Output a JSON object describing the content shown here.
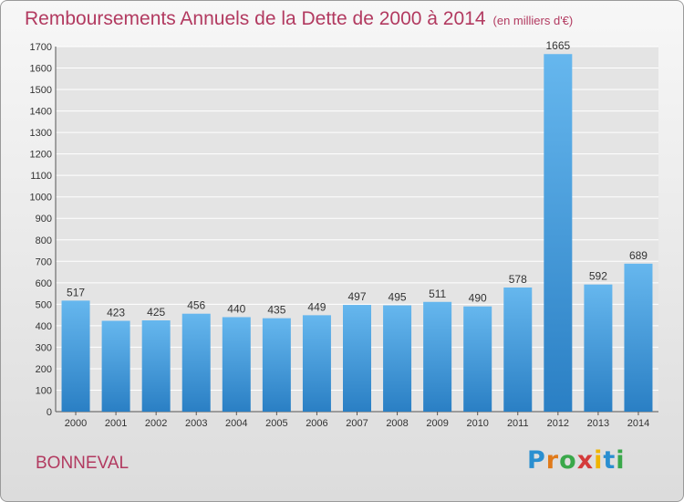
{
  "title": "Remboursements Annuels de la Dette de 2000 à 2014",
  "unit": "(en milliers d'€)",
  "commune": "BONNEVAL",
  "logo_text": "Proxiti",
  "colors": {
    "title": "#b23a60",
    "bar_top": "#66b7ee",
    "bar_bottom": "#2a7fc4",
    "grid": "#ffffff"
  },
  "chart_data": {
    "type": "bar",
    "title": "Remboursements Annuels de la Dette de 2000 à 2014",
    "subtitle": "(en milliers d'€)",
    "xlabel": "",
    "ylabel": "",
    "categories": [
      "2000",
      "2001",
      "2002",
      "2003",
      "2004",
      "2005",
      "2006",
      "2007",
      "2008",
      "2009",
      "2010",
      "2011",
      "2012",
      "2013",
      "2014"
    ],
    "values": [
      517,
      423,
      425,
      456,
      440,
      435,
      449,
      497,
      495,
      511,
      490,
      578,
      1665,
      592,
      689
    ],
    "ylim": [
      0,
      1700
    ],
    "yticks": [
      0,
      100,
      200,
      300,
      400,
      500,
      600,
      700,
      800,
      900,
      1000,
      1100,
      1200,
      1300,
      1400,
      1500,
      1600,
      1700
    ],
    "grid": true,
    "data_labels": true
  }
}
